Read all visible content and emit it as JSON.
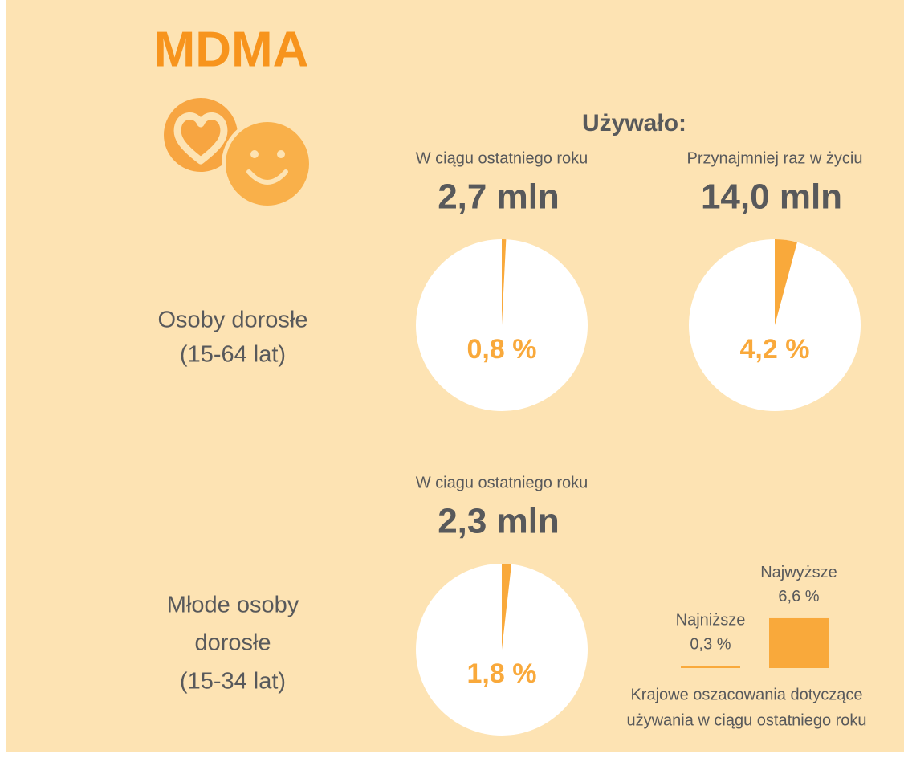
{
  "title": "MDMA",
  "heading": "Używało:",
  "groups": [
    [
      "Osoby dorosłe",
      "(15-64 lat)"
    ],
    [
      "Młode osoby",
      "dorosłe",
      "(15-34 lat)"
    ]
  ],
  "chart_data": [
    {
      "type": "pie",
      "subtitle": "W ciągu ostatniego roku",
      "total": "2,7 mln",
      "values": [
        0.8
      ],
      "value_labels": [
        "0,8 %"
      ],
      "color": "#f9a93b"
    },
    {
      "type": "pie",
      "subtitle": "Przynajmniej raz w życiu",
      "total": "14,0 mln",
      "values": [
        4.2
      ],
      "value_labels": [
        "4,2 %"
      ],
      "color": "#f9a93b"
    },
    {
      "type": "pie",
      "subtitle": "W ciagu ostatniego roku",
      "total": "2,3 mln",
      "values": [
        1.8
      ],
      "value_labels": [
        "1,8 %"
      ],
      "color": "#f9a93b"
    },
    {
      "type": "bar",
      "categories": [
        "Najniższe",
        "Najwyższe"
      ],
      "values": [
        0.3,
        6.6
      ],
      "value_labels": [
        "0,3 %",
        "6,6 %"
      ],
      "color": "#f9a93b",
      "caption": [
        "Krajowe oszacowania dotyczące",
        "używania w ciągu ostatniego roku"
      ]
    }
  ]
}
